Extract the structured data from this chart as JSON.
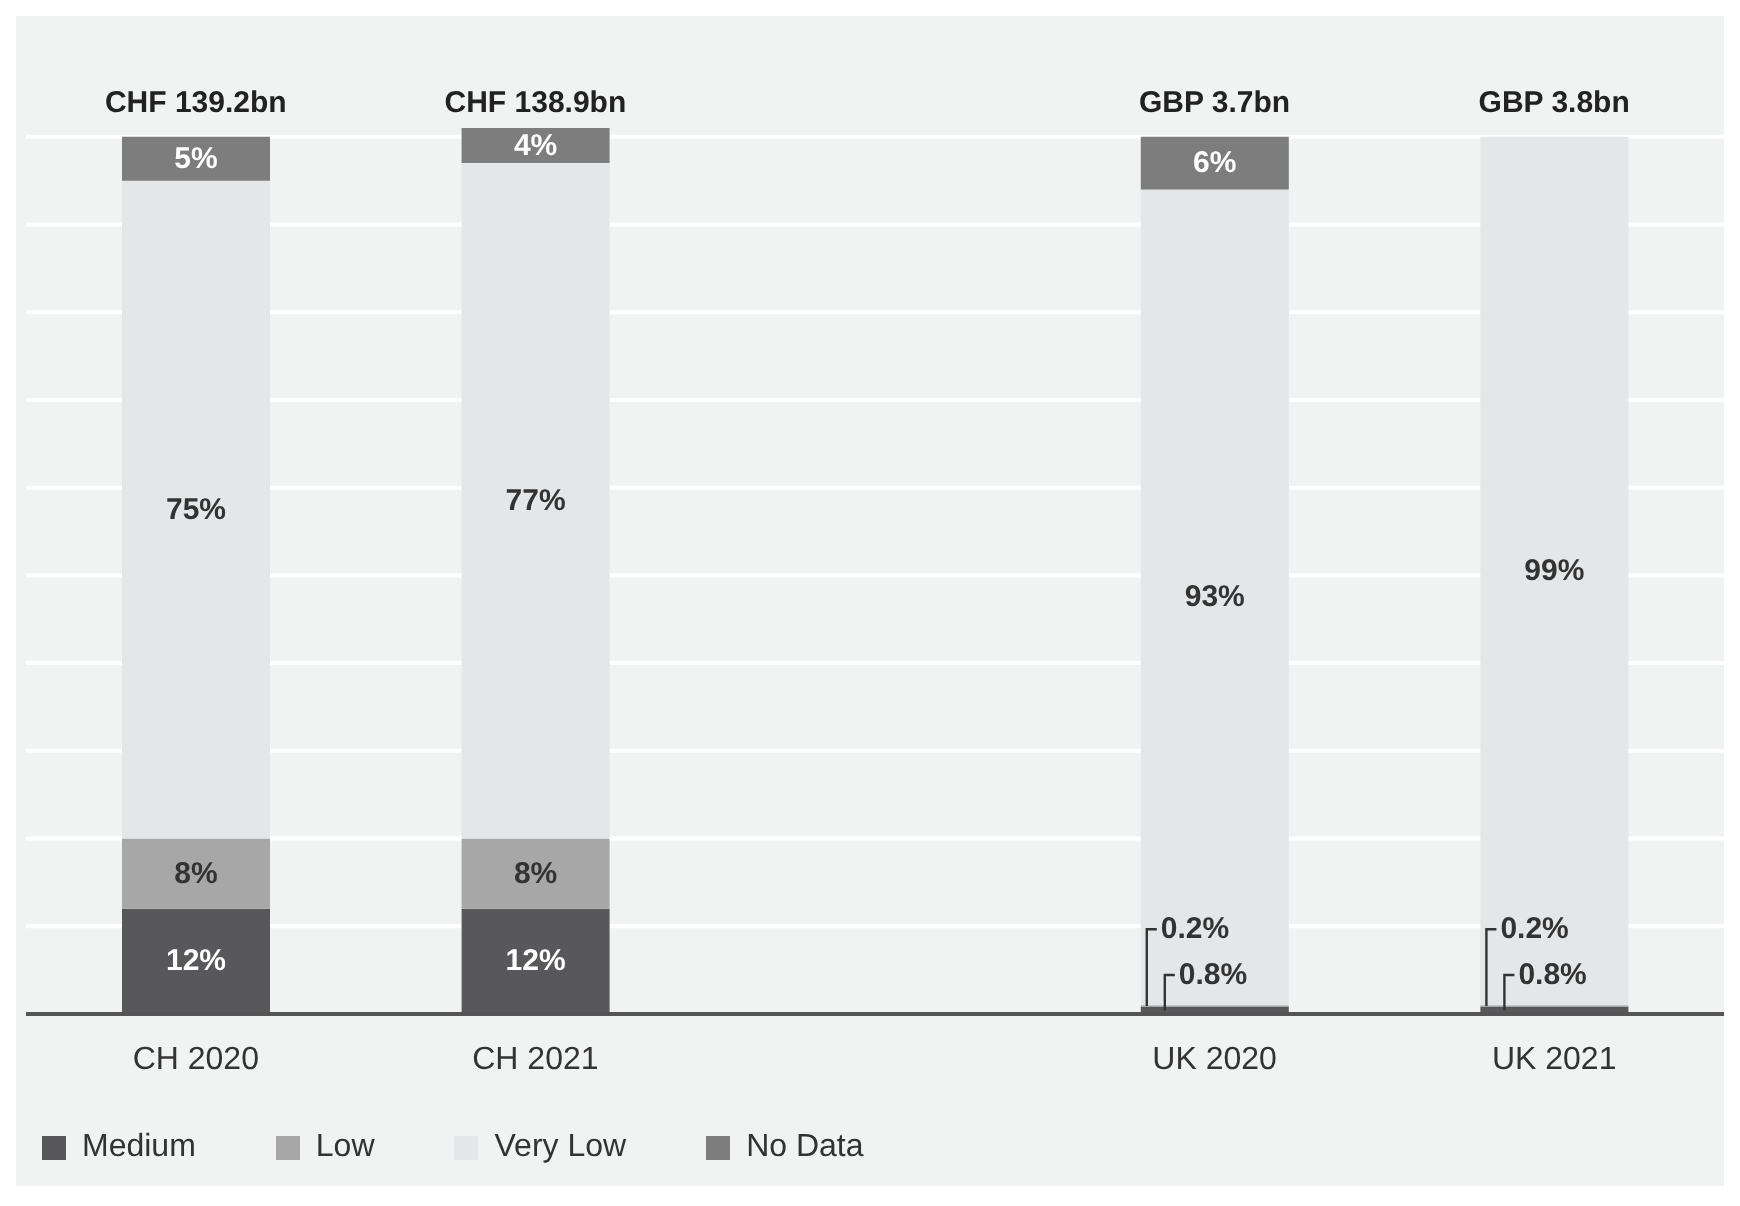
{
  "chart_data": {
    "type": "bar",
    "stacked": true,
    "categories": [
      "CH 2020",
      "CH 2021",
      null,
      "UK 2020",
      "UK 2021"
    ],
    "series": [
      {
        "name": "Medium",
        "color": "#58585a",
        "values": [
          12,
          12,
          null,
          0.8,
          0.8
        ],
        "value_labels": [
          "12%",
          "12%",
          null,
          "0.8%",
          "0.8%"
        ]
      },
      {
        "name": "Low",
        "color": "#a7a7a7",
        "values": [
          8,
          8,
          null,
          0.2,
          0.2
        ],
        "value_labels": [
          "8%",
          "8%",
          null,
          "0.2%",
          "0.2%"
        ]
      },
      {
        "name": "Very Low",
        "color": "#e5e6e7",
        "values": [
          75,
          77,
          null,
          93,
          99
        ],
        "value_labels": [
          "75%",
          "77%",
          null,
          "93%",
          "99%"
        ]
      },
      {
        "name": "No Data",
        "color": "#7d7d7d",
        "values": [
          5,
          4,
          null,
          6,
          null
        ],
        "value_labels": [
          "5%",
          "4%",
          null,
          "6%",
          null
        ]
      }
    ],
    "totals": [
      "CHF 139.2bn",
      "CHF 138.9bn",
      null,
      "GBP 3.7bn",
      "GBP 3.8bn"
    ],
    "ylim": [
      0,
      101
    ],
    "yticks": [
      {
        "value": 0,
        "label": null
      },
      {
        "value": 10,
        "label": null
      },
      {
        "value": 20,
        "label": null
      },
      {
        "value": 30,
        "label": null
      },
      {
        "value": 40,
        "label": null
      },
      {
        "value": 50,
        "label": null
      },
      {
        "value": 60,
        "label": null
      },
      {
        "value": 70,
        "label": null
      },
      {
        "value": 80,
        "label": null
      },
      {
        "value": 90,
        "label": null
      },
      {
        "value": 100,
        "label": null
      }
    ],
    "tick_labels": "x",
    "grid": "y",
    "legend": "bottom left"
  }
}
